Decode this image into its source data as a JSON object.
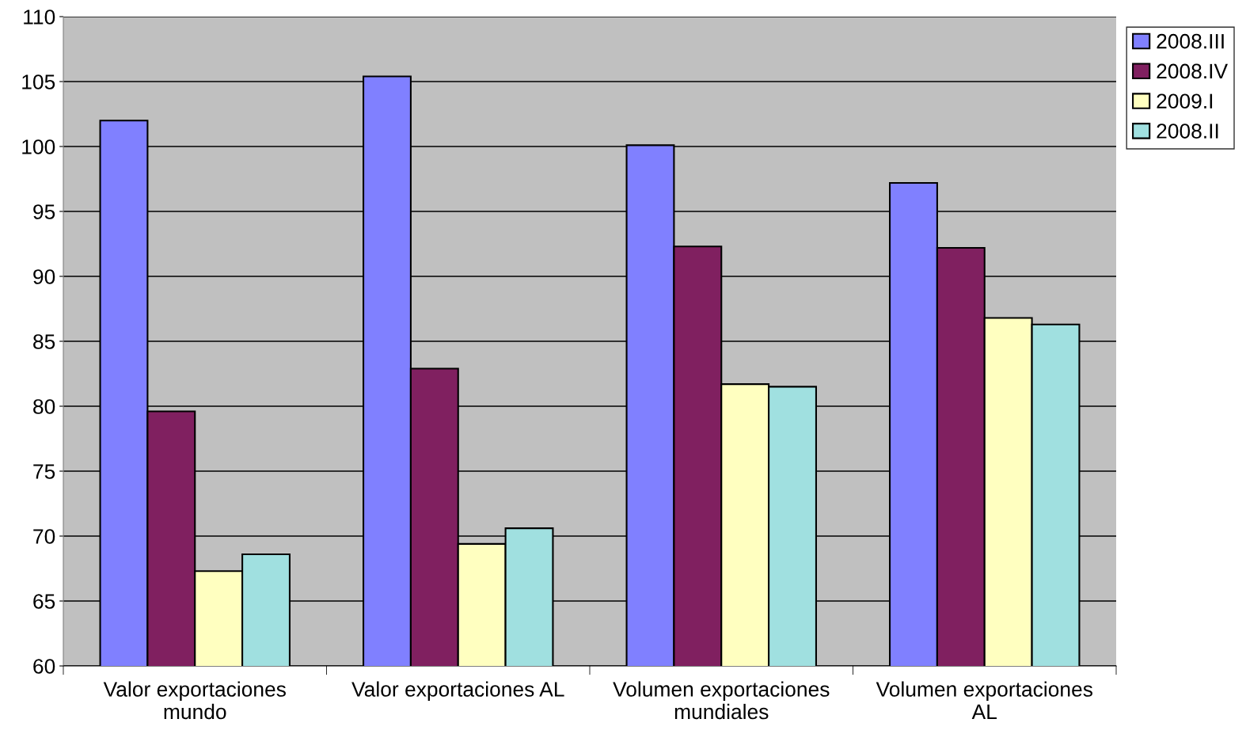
{
  "chart_data": {
    "type": "bar",
    "categories": [
      "Valor exportaciones\nmundo",
      "Valor exportaciones AL",
      "Volumen exportaciones\nmundiales",
      "Volumen exportaciones\nAL"
    ],
    "series": [
      {
        "name": "2008.III",
        "color": "#8080ff",
        "values": [
          102.0,
          105.4,
          100.1,
          97.2
        ]
      },
      {
        "name": "2008.IV",
        "color": "#802060",
        "values": [
          79.6,
          82.9,
          92.3,
          92.2
        ]
      },
      {
        "name": "2009.I",
        "color": "#ffffc0",
        "values": [
          67.3,
          69.4,
          81.7,
          86.8
        ]
      },
      {
        "name": "2008.II",
        "color": "#a0e0e0",
        "values": [
          68.6,
          70.6,
          81.5,
          86.3
        ]
      }
    ],
    "ylim": [
      60,
      110
    ],
    "yticks": [
      60,
      65,
      70,
      75,
      80,
      85,
      90,
      95,
      100,
      105,
      110
    ],
    "grid": "y",
    "legend": "right"
  }
}
